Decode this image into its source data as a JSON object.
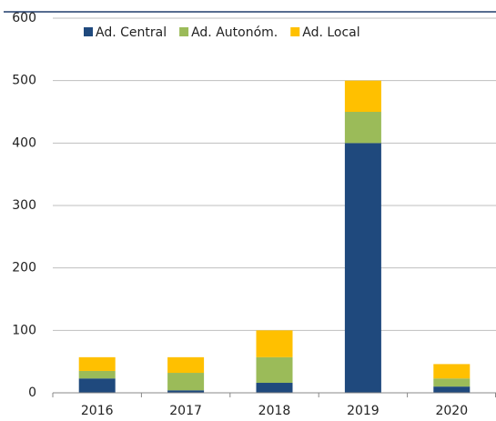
{
  "chart_data": {
    "type": "stacked_bar",
    "categories": [
      "2016",
      "2017",
      "2018",
      "2019",
      "2020"
    ],
    "series": [
      {
        "name": "Ad. Central",
        "color": "#1f497d",
        "values": [
          23,
          4,
          16,
          400,
          10
        ]
      },
      {
        "name": "Ad. Autonóm.",
        "color": "#9bbb59",
        "values": [
          12,
          28,
          41,
          50,
          13
        ]
      },
      {
        "name": "Ad. Local",
        "color": "#ffc000",
        "values": [
          22,
          25,
          43,
          50,
          23
        ]
      }
    ],
    "ylim": [
      0,
      600
    ],
    "yticks": [
      0,
      100,
      200,
      300,
      400,
      500,
      600
    ],
    "grid": true,
    "legend": "top"
  }
}
